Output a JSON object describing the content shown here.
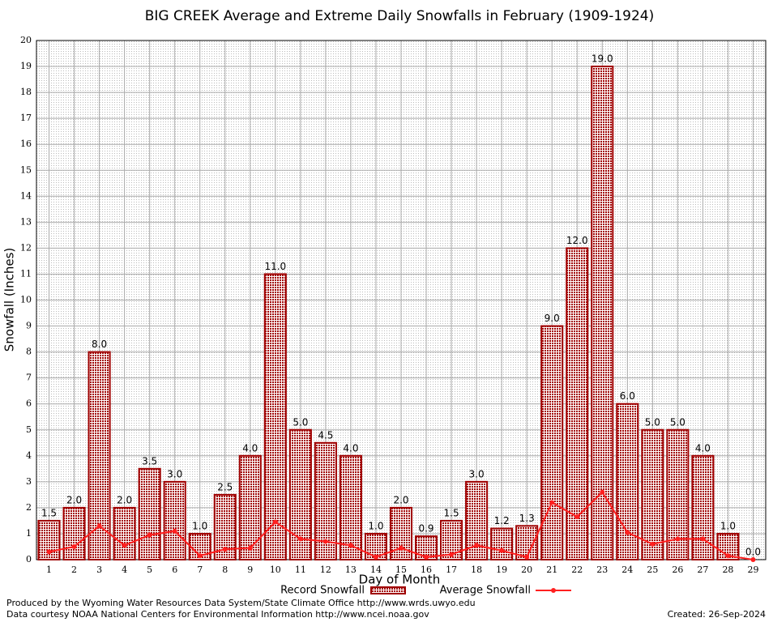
{
  "chart_data": {
    "type": "bar",
    "title": "BIG CREEK Average and Extreme Daily Snowfalls in February (1909-1924)",
    "x_label": "Day of Month",
    "y_label": "Snowfall (Inches)",
    "categories": [
      "1",
      "2",
      "3",
      "4",
      "5",
      "6",
      "7",
      "8",
      "9",
      "10",
      "11",
      "12",
      "13",
      "14",
      "15",
      "16",
      "17",
      "18",
      "19",
      "20",
      "21",
      "22",
      "23",
      "24",
      "25",
      "26",
      "27",
      "28",
      "29"
    ],
    "series": [
      {
        "name": "Record Snowfall",
        "type": "bar",
        "color": "#a00000",
        "values": [
          1.5,
          2.0,
          8.0,
          2.0,
          3.5,
          3.0,
          1.0,
          2.5,
          4.0,
          11.0,
          5.0,
          4.5,
          4.0,
          1.0,
          2.0,
          0.9,
          1.5,
          3.0,
          1.2,
          1.3,
          9.0,
          12.0,
          19.0,
          6.0,
          5.0,
          5.0,
          4.0,
          1.0,
          0.0
        ],
        "value_labels": [
          "1.5",
          "2.0",
          "8.0",
          "2.0",
          "3.5",
          "3.0",
          "1.0",
          "2.5",
          "4.0",
          "11.0",
          "5.0",
          "4.5",
          "4.0",
          "1.0",
          "2.0",
          "0.9",
          "1.5",
          "3.0",
          "1.2",
          "1.3",
          "9.0",
          "12.0",
          "19.0",
          "6.0",
          "5.0",
          "5.0",
          "4.0",
          "1.0",
          "0.0"
        ]
      },
      {
        "name": "Average Snowfall",
        "type": "line",
        "color": "#ff2020",
        "values": [
          0.3,
          0.5,
          1.3,
          0.55,
          0.95,
          1.1,
          0.15,
          0.4,
          0.45,
          1.45,
          0.8,
          0.7,
          0.55,
          0.1,
          0.45,
          0.1,
          0.2,
          0.55,
          0.35,
          0.1,
          2.2,
          1.65,
          2.6,
          1.05,
          0.6,
          0.8,
          0.8,
          0.15,
          0.0
        ]
      }
    ],
    "ylim": [
      0,
      20
    ],
    "yticks": [
      0,
      1,
      2,
      3,
      4,
      5,
      6,
      7,
      8,
      9,
      10,
      11,
      12,
      13,
      14,
      15,
      16,
      17,
      18,
      19,
      20
    ],
    "grid": true,
    "footer": [
      "Produced by the Wyoming Water Resources Data System/State Climate Office http://www.wrds.uwyo.edu",
      "Data courtesy NOAA National Centers for Environmental Information http://www.ncei.noaa.gov"
    ],
    "created": "Created:  26-Sep-2024"
  }
}
